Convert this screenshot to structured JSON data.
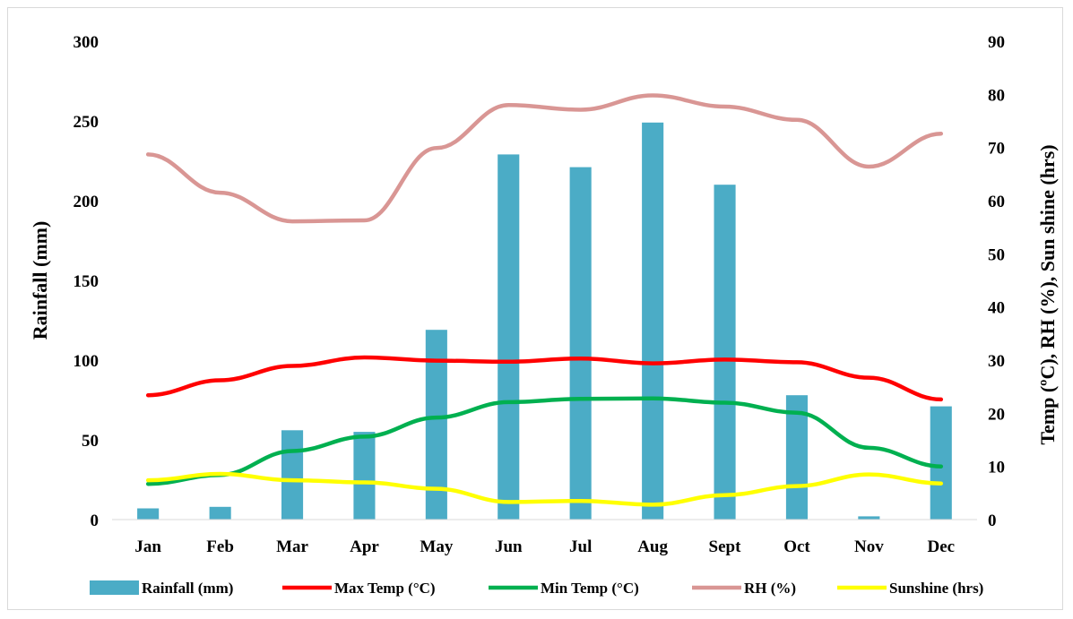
{
  "chart_data": {
    "type": "bar+line",
    "categories": [
      "Jan",
      "Feb",
      "Mar",
      "Apr",
      "May",
      "Jun",
      "Jul",
      "Aug",
      "Sept",
      "Oct",
      "Nov",
      "Dec"
    ],
    "ylabel_left": "Rainfall (mm)",
    "ylabel_right": "Temp (ºC), RH (%), Sun shine (hrs)",
    "ylim_left": [
      0,
      300
    ],
    "ylim_right": [
      0,
      90
    ],
    "yticks_left": [
      "0",
      "50",
      "100",
      "150",
      "200",
      "250",
      "300"
    ],
    "yticks_right": [
      "0",
      "10",
      "20",
      "30",
      "40",
      "50",
      "60",
      "70",
      "80",
      "90"
    ],
    "grid": false,
    "legend_position": "bottom",
    "series": [
      {
        "name": "Rainfall (mm)",
        "type": "bar",
        "axis": "left",
        "color": "#4bacc6",
        "values": [
          7,
          8,
          56,
          55,
          119,
          229,
          221,
          249,
          210,
          78,
          2,
          71
        ]
      },
      {
        "name": "Max Temp (°C)",
        "type": "line",
        "axis": "right",
        "color": "#ff0000",
        "values": [
          23.4,
          26.2,
          28.9,
          30.5,
          29.9,
          29.7,
          30.3,
          29.4,
          30.1,
          29.6,
          26.7,
          22.6
        ]
      },
      {
        "name": "Min Temp (°C)",
        "type": "line",
        "axis": "right",
        "color": "#00b050",
        "values": [
          6.7,
          8.4,
          12.9,
          15.6,
          19.2,
          22.1,
          22.7,
          22.8,
          22.0,
          20.1,
          13.5,
          10.0
        ]
      },
      {
        "name": "RH (%)",
        "type": "line",
        "axis": "right",
        "color": "#d99694",
        "values": [
          68.7,
          61.5,
          56.1,
          56.3,
          69.9,
          78.0,
          77.1,
          79.8,
          77.7,
          75.2,
          66.4,
          72.6
        ]
      },
      {
        "name": "Sunshine (hrs)",
        "type": "line",
        "axis": "right",
        "color": "#ffff00",
        "values": [
          7.4,
          8.6,
          7.4,
          7.0,
          5.8,
          3.3,
          3.5,
          2.8,
          4.6,
          6.3,
          8.5,
          6.8
        ]
      }
    ]
  }
}
